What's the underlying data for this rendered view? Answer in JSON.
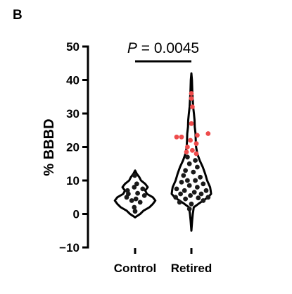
{
  "panel_label": "B",
  "chart_data": {
    "type": "violin",
    "ylabel": "% BBBD",
    "xlabel": "",
    "categories": [
      "Control",
      "Retired"
    ],
    "ylim": [
      -10,
      50
    ],
    "yticks": [
      -10,
      0,
      10,
      20,
      30,
      40,
      50
    ],
    "ytick_labels": [
      "−10",
      "0",
      "10",
      "20",
      "30",
      "40",
      "50"
    ],
    "annotation": {
      "p_symbol": "P",
      "p_rest": " = 0.0045"
    },
    "colors": {
      "base_points": "#1a1a1a",
      "highlight_points": "#ee4b4b",
      "violin": "#000000"
    },
    "series": [
      {
        "category": "Control",
        "violin": [
          [
            -1,
            0
          ],
          [
            0,
            0.3
          ],
          [
            1,
            0.5
          ],
          [
            2,
            0.85
          ],
          [
            3,
            1.05
          ],
          [
            4,
            1.2
          ],
          [
            5,
            1.05
          ],
          [
            6,
            0.7
          ],
          [
            7,
            0.6
          ],
          [
            8,
            0.75
          ],
          [
            9,
            0.6
          ],
          [
            10,
            0.35
          ],
          [
            11,
            0.25
          ],
          [
            12,
            0.1
          ],
          [
            13,
            0
          ]
        ],
        "points": [
          {
            "y": 0.8,
            "dx": 0.0
          },
          {
            "y": 2.0,
            "dx": -0.05
          },
          {
            "y": 3.5,
            "dx": 0.3
          },
          {
            "y": 4.0,
            "dx": -0.2
          },
          {
            "y": 4.5,
            "dx": 0.05
          },
          {
            "y": 5.0,
            "dx": -0.5
          },
          {
            "y": 5.5,
            "dx": 0.55
          },
          {
            "y": 6.0,
            "dx": -0.4
          },
          {
            "y": 6.2,
            "dx": 0.15
          },
          {
            "y": 7.0,
            "dx": -0.45
          },
          {
            "y": 7.5,
            "dx": 0.45
          },
          {
            "y": 8.0,
            "dx": -0.05
          },
          {
            "y": 9.0,
            "dx": 0.1
          },
          {
            "y": 11.5,
            "dx": -0.02
          }
        ]
      },
      {
        "category": "Retired",
        "violin": [
          [
            -5,
            0
          ],
          [
            -2,
            0.04
          ],
          [
            0,
            0.07
          ],
          [
            2,
            0.12
          ],
          [
            3,
            0.35
          ],
          [
            5,
            0.85
          ],
          [
            6,
            1.0
          ],
          [
            7,
            0.98
          ],
          [
            8,
            0.95
          ],
          [
            10,
            0.8
          ],
          [
            12,
            0.7
          ],
          [
            14,
            0.58
          ],
          [
            16,
            0.42
          ],
          [
            18,
            0.3
          ],
          [
            20,
            0.24
          ],
          [
            22,
            0.22
          ],
          [
            24,
            0.21
          ],
          [
            26,
            0.17
          ],
          [
            28,
            0.16
          ],
          [
            30,
            0.13
          ],
          [
            32,
            0.09
          ],
          [
            34,
            0.07
          ],
          [
            36,
            0.05
          ],
          [
            38,
            0.04
          ],
          [
            40,
            0.03
          ],
          [
            42,
            0
          ]
        ],
        "points": [
          {
            "y": 1.5,
            "dx": -0.1,
            "hl": false
          },
          {
            "y": 3.0,
            "dx": 0.0,
            "hl": false
          },
          {
            "y": 3.5,
            "dx": -0.6,
            "hl": false
          },
          {
            "y": 4.0,
            "dx": 0.6,
            "hl": false
          },
          {
            "y": 4.5,
            "dx": -0.3,
            "hl": false
          },
          {
            "y": 4.8,
            "dx": 0.35,
            "hl": false
          },
          {
            "y": 5.0,
            "dx": -0.8,
            "hl": false
          },
          {
            "y": 5.0,
            "dx": 0.85,
            "hl": false
          },
          {
            "y": 5.5,
            "dx": -0.05,
            "hl": false
          },
          {
            "y": 6.0,
            "dx": -0.55,
            "hl": false
          },
          {
            "y": 6.0,
            "dx": 0.5,
            "hl": false
          },
          {
            "y": 6.5,
            "dx": 0.15,
            "hl": false
          },
          {
            "y": 7.0,
            "dx": -0.35,
            "hl": false
          },
          {
            "y": 7.0,
            "dx": 0.75,
            "hl": false
          },
          {
            "y": 7.5,
            "dx": -0.75,
            "hl": false
          },
          {
            "y": 8.0,
            "dx": 0.3,
            "hl": false
          },
          {
            "y": 8.5,
            "dx": -0.1,
            "hl": false
          },
          {
            "y": 9.0,
            "dx": 0.6,
            "hl": false
          },
          {
            "y": 9.5,
            "dx": -0.5,
            "hl": false
          },
          {
            "y": 10.0,
            "dx": 0.2,
            "hl": false
          },
          {
            "y": 10.0,
            "dx": -0.2,
            "hl": false
          },
          {
            "y": 11.0,
            "dx": 0.45,
            "hl": false
          },
          {
            "y": 11.5,
            "dx": -0.4,
            "hl": false
          },
          {
            "y": 12.5,
            "dx": 0.1,
            "hl": false
          },
          {
            "y": 13.0,
            "dx": -0.3,
            "hl": false
          },
          {
            "y": 14.0,
            "dx": 0.3,
            "hl": false
          },
          {
            "y": 15.0,
            "dx": -0.1,
            "hl": false
          },
          {
            "y": 16.0,
            "dx": 0.2,
            "hl": false
          },
          {
            "y": 17.0,
            "dx": -0.2,
            "hl": false
          },
          {
            "y": 18.0,
            "dx": 0.25,
            "hl": true
          },
          {
            "y": 18.5,
            "dx": -0.25,
            "hl": true
          },
          {
            "y": 19.0,
            "dx": 0.05,
            "hl": true
          },
          {
            "y": 20.0,
            "dx": -0.2,
            "hl": true
          },
          {
            "y": 21.0,
            "dx": 0.25,
            "hl": true
          },
          {
            "y": 22.0,
            "dx": -0.05,
            "hl": true
          },
          {
            "y": 23.0,
            "dx": -0.75,
            "hl": true
          },
          {
            "y": 23.0,
            "dx": -0.5,
            "hl": true
          },
          {
            "y": 23.5,
            "dx": 0.3,
            "hl": true
          },
          {
            "y": 24.0,
            "dx": 0.85,
            "hl": true
          },
          {
            "y": 27.0,
            "dx": 0.0,
            "hl": true
          },
          {
            "y": 32.0,
            "dx": 0.05,
            "hl": true
          },
          {
            "y": 34.5,
            "dx": 0.0,
            "hl": true
          },
          {
            "y": 36.0,
            "dx": 0.0,
            "hl": true
          }
        ]
      }
    ]
  }
}
